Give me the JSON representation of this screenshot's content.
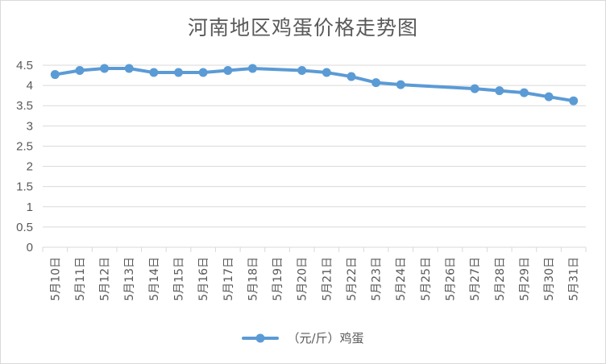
{
  "chart_data": {
    "type": "line",
    "title": "河南地区鸡蛋价格走势图",
    "categories": [
      "5月10日",
      "5月11日",
      "5月12日",
      "5月13日",
      "5月14日",
      "5月15日",
      "5月16日",
      "5月17日",
      "5月18日",
      "5月19日",
      "5月20日",
      "5月21日",
      "5月22日",
      "5月23日",
      "5月24日",
      "5月25日",
      "5月26日",
      "5月27日",
      "5月28日",
      "5月29日",
      "5月30日",
      "5月31日"
    ],
    "series": [
      {
        "name": "（元/斤）鸡蛋",
        "color": "#5b9bd5",
        "values": [
          4.27,
          4.37,
          4.42,
          4.42,
          4.32,
          4.32,
          4.32,
          4.37,
          4.42,
          null,
          4.37,
          4.32,
          4.22,
          4.07,
          4.02,
          null,
          null,
          3.92,
          3.87,
          3.82,
          3.72,
          3.62
        ]
      }
    ],
    "ylim": [
      0,
      4.5
    ],
    "yticks": [
      "0",
      "0.5",
      "1",
      "1.5",
      "2",
      "2.5",
      "3",
      "3.5",
      "4",
      "4.5"
    ],
    "xlabel": "",
    "ylabel": "",
    "grid": true,
    "legend": "bottom"
  }
}
